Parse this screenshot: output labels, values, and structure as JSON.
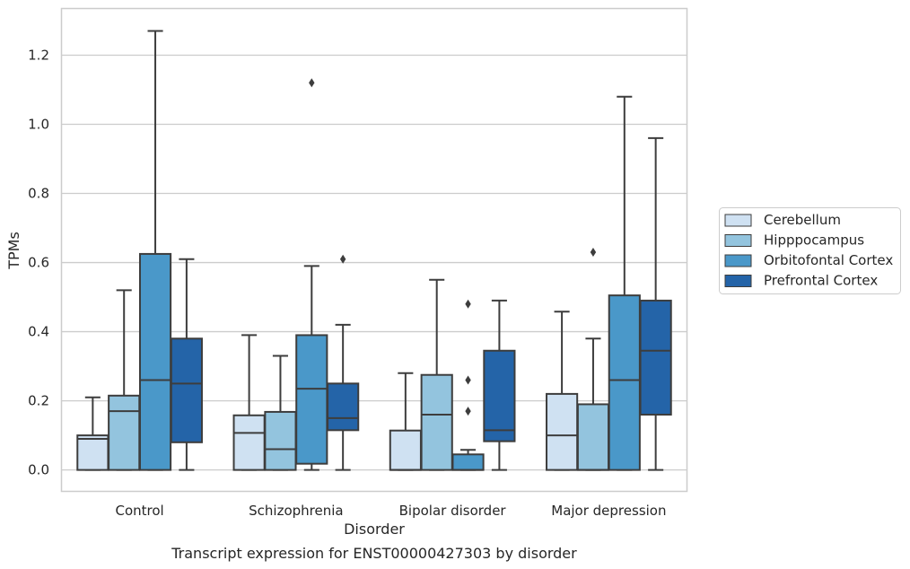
{
  "chart_data": {
    "type": "boxplot",
    "xlabel": "Disorder",
    "ylabel": "TPMs",
    "caption": "Transcript expression for ENST00000427303 by disorder",
    "ylim": [
      -0.062,
      1.335
    ],
    "yticks": [
      "0.0",
      "0.2",
      "0.4",
      "0.6",
      "0.8",
      "1.0",
      "1.2"
    ],
    "ytick_values": [
      0.0,
      0.2,
      0.4,
      0.6,
      0.8,
      1.0,
      1.2
    ],
    "grid": true,
    "legend_position": "right",
    "categories": [
      "Control",
      "Schizophrenia",
      "Bipolar disorder",
      "Major depression"
    ],
    "series": [
      {
        "name": "Cerebellum",
        "color": "#cfe1f2",
        "boxes": [
          {
            "min": 0.0,
            "q1": 0.0,
            "median": 0.09,
            "q3": 0.1,
            "max": 0.21,
            "outliers": []
          },
          {
            "min": 0.0,
            "q1": 0.0,
            "median": 0.107,
            "q3": 0.158,
            "max": 0.39,
            "outliers": []
          },
          {
            "min": 0.0,
            "q1": 0.0,
            "median": 0.0,
            "q3": 0.114,
            "max": 0.28,
            "outliers": []
          },
          {
            "min": 0.0,
            "q1": 0.0,
            "median": 0.1,
            "q3": 0.22,
            "max": 0.458,
            "outliers": []
          }
        ]
      },
      {
        "name": "Hipppocampus",
        "color": "#93c4de",
        "boxes": [
          {
            "min": 0.0,
            "q1": 0.0,
            "median": 0.17,
            "q3": 0.215,
            "max": 0.52,
            "outliers": []
          },
          {
            "min": 0.0,
            "q1": 0.0,
            "median": 0.06,
            "q3": 0.168,
            "max": 0.33,
            "outliers": []
          },
          {
            "min": 0.0,
            "q1": 0.0,
            "median": 0.16,
            "q3": 0.275,
            "max": 0.55,
            "outliers": []
          },
          {
            "min": 0.0,
            "q1": 0.0,
            "median": 0.0,
            "q3": 0.19,
            "max": 0.38,
            "outliers": [
              0.63
            ]
          }
        ]
      },
      {
        "name": "Orbitofontal Cortex",
        "color": "#4a98c9",
        "boxes": [
          {
            "min": 0.0,
            "q1": 0.0,
            "median": 0.26,
            "q3": 0.625,
            "max": 1.27,
            "outliers": []
          },
          {
            "min": 0.0,
            "q1": 0.018,
            "median": 0.235,
            "q3": 0.39,
            "max": 0.59,
            "outliers": [
              1.12
            ]
          },
          {
            "min": 0.0,
            "q1": 0.0,
            "median": 0.0,
            "q3": 0.045,
            "max": 0.058,
            "outliers": [
              0.17,
              0.26,
              0.48
            ]
          },
          {
            "min": 0.0,
            "q1": 0.0,
            "median": 0.26,
            "q3": 0.505,
            "max": 1.08,
            "outliers": []
          }
        ]
      },
      {
        "name": "Prefrontal Cortex",
        "color": "#2464a8",
        "boxes": [
          {
            "min": 0.0,
            "q1": 0.08,
            "median": 0.25,
            "q3": 0.38,
            "max": 0.61,
            "outliers": []
          },
          {
            "min": 0.0,
            "q1": 0.115,
            "median": 0.15,
            "q3": 0.25,
            "max": 0.42,
            "outliers": [
              0.61
            ]
          },
          {
            "min": 0.0,
            "q1": 0.083,
            "median": 0.115,
            "q3": 0.345,
            "max": 0.49,
            "outliers": []
          },
          {
            "min": 0.0,
            "q1": 0.16,
            "median": 0.345,
            "q3": 0.49,
            "max": 0.96,
            "outliers": []
          }
        ]
      }
    ]
  }
}
